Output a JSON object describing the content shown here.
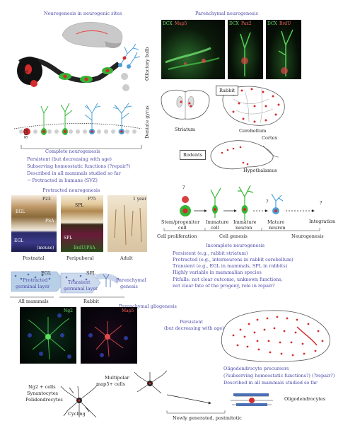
{
  "neurogenic_sites": {
    "title": "Neurogenesis in neurogenic sites",
    "svz": "SVZ",
    "sgz": "SGZ",
    "olfactory_bulb": "Olfactory bulb",
    "dentate_gyrus": "Dentate gyrus",
    "complete": "Complete neurogenesis",
    "props": [
      "Persistent (but decreasing with age)",
      "Subserving homeostatic functions (?repair?)",
      "Described in all mammals studied so far",
      "→ Protracted in humans (SVZ)"
    ]
  },
  "parenchymal": {
    "title": "Parenchymal neurogenesis",
    "panel1_labels": [
      "DCX",
      "Map5"
    ],
    "panel2_labels": [
      "DCX",
      "Pax2"
    ],
    "panel3_labels": [
      "DCX",
      "BrdU"
    ],
    "rabbit": "Rabbit",
    "striatum": "Striatum",
    "cerebellum": "Cerebellum",
    "rodents": "Rodents",
    "cortex": "Cortex",
    "hypothalamus": "Hypothalamus"
  },
  "protracted": {
    "title": "Protracted neurogenesis",
    "p23": "P23",
    "egl": "EGL",
    "psa": "PSA",
    "dapi_mouse": "EGL",
    "mouse": "(mouse)",
    "p75": "P75",
    "spl": "SPL",
    "spl2": "SPL",
    "brdu_psa": "BrdU/PSA",
    "one_year": "1 year",
    "postnatal": "Postnatal",
    "peripuberal": "Peripuberal",
    "adult": "Adult",
    "scheme_egl": "EGL",
    "scheme_spl": "SPL",
    "protracted_germinal": [
      "Protracted",
      "germinal layer"
    ],
    "transient_germinal": [
      "Transient",
      "germinal layer"
    ],
    "parenchymal_genesis": [
      "Parenchymal",
      "genesis"
    ],
    "all_mammals": "All mammals",
    "rabbit": "Rabbit"
  },
  "lineage": {
    "q1": "?",
    "q2": "?",
    "q3": "?",
    "stem": [
      "Stem/progenitor",
      "cell"
    ],
    "immature_cell": [
      "Immature",
      "cell"
    ],
    "immature_neuron": [
      "Immature",
      "neuron"
    ],
    "mature_neuron": [
      "Mature",
      "neuron"
    ],
    "integration": "Integration",
    "cell_proliferation": "Cell proliferation",
    "cell_genesis": "Cell genesis",
    "neurogenesis": "Neurogenesis"
  },
  "incomplete": {
    "title": "Incomplete neurogenesis",
    "props": [
      "Persistent (e.g., rabbit striatum)",
      "Protracted (e.g., interneurons in rabbit cerebellum)",
      "Transient (e.g., EGL in mammals, SPL in rabbits)",
      "Highly variable in mammalian species",
      "Pitfalls: not clear outcome, unknown functions,",
      "not clear fate of the progeny, role in repair?"
    ]
  },
  "gliogenesis": {
    "title": "Parenchymal gliogenesis",
    "ng2": "Ng2",
    "map5": "Map5",
    "persistent": [
      "Persistent",
      "(but decreasing with age)"
    ],
    "opc": [
      "Oligodendrocyte precursors",
      "(?subserving homeostatic functions?) (?repair?)",
      "Described in all mammals studied so far"
    ],
    "ng2_cells": [
      "Ng2 + cells",
      "Synantocytes",
      "Polidendrocytes"
    ],
    "multipolar": [
      "Multipolar",
      "map5+ cells"
    ],
    "cycling": "Cycling",
    "oligodendrocytes": "Oligodendrocytes",
    "newly": "Newly generated, postmitotic"
  },
  "colors": {
    "text_blue": "#4a4aa8",
    "red": "#d42b2b",
    "green": "#35b535",
    "cyan": "#4aa0d8"
  }
}
